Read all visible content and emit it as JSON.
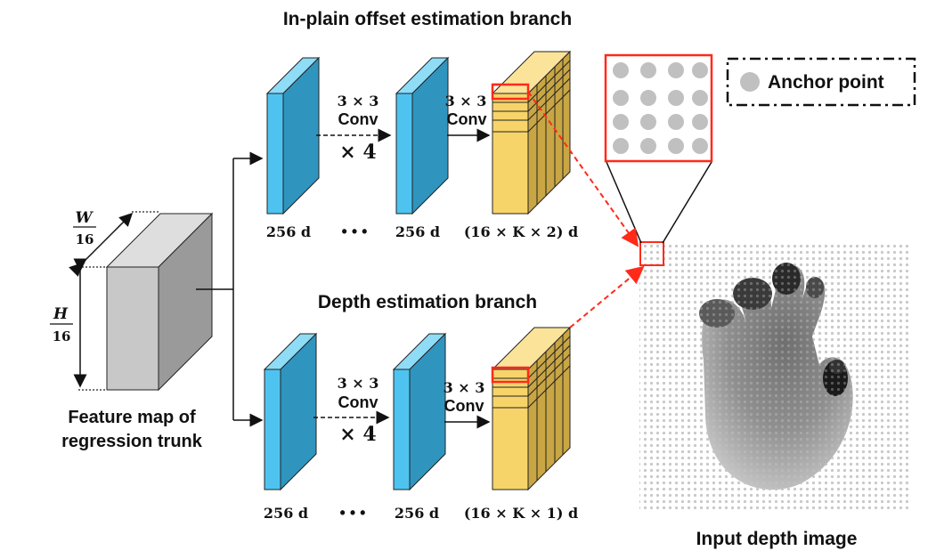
{
  "branches": {
    "offset": {
      "title": "In-plain offset estimation branch",
      "conv1": {
        "size": "3 × 3",
        "name": "Conv",
        "repeat": "× 4"
      },
      "conv2": {
        "size": "3 × 3",
        "name": "Conv"
      },
      "dims": [
        "256 d",
        "• • •",
        "256 d",
        "(16 × K × 2) d"
      ]
    },
    "depth": {
      "title": "Depth estimation branch",
      "conv1": {
        "size": "3 × 3",
        "name": "Conv",
        "repeat": "× 4"
      },
      "conv2": {
        "size": "3 × 3",
        "name": "Conv"
      },
      "dims": [
        "256 d",
        "• • •",
        "256 d",
        "(16 × K × 1) d"
      ]
    }
  },
  "feature_map": {
    "width_label_num": "W",
    "width_label_den": "16",
    "height_label_num": "H",
    "height_label_den": "16",
    "caption_line1": "Feature map of",
    "caption_line2": "regression trunk"
  },
  "legend": {
    "label": "Anchor point"
  },
  "input_image": {
    "caption": "Input depth image"
  },
  "colors": {
    "blue_front": "#4fc3f0",
    "blue_side": "#2f95bf",
    "yellow_front": "#f7d46a",
    "yellow_side": "#c9a644",
    "gray_front": "#c8c8c8",
    "gray_side": "#9a9a9a",
    "highlight": "#ff2a1a",
    "anchor": "#c0c0c0"
  }
}
